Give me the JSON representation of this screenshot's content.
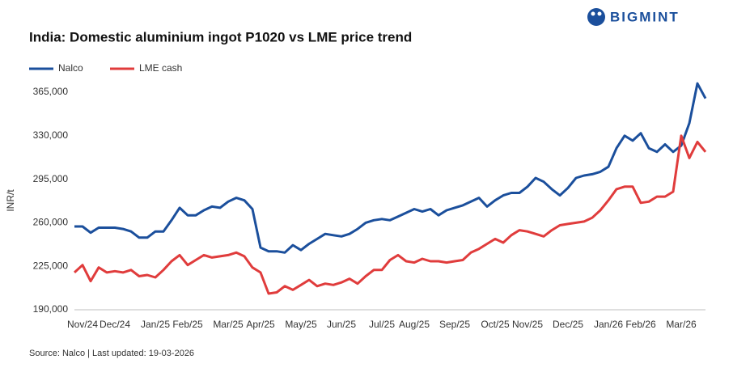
{
  "logo": "BIGMINT",
  "chart_data": {
    "type": "line",
    "title": "India: Domestic aluminium ingot P1020 vs LME price trend",
    "ylabel": "INR/t",
    "source": "Source: Nalco | Last updated: 19-03-2026",
    "legend": "top-left",
    "grid": false,
    "ylim": [
      190000,
      375000
    ],
    "yticks": [
      {
        "value": 190000,
        "label": "190,000"
      },
      {
        "value": 225000,
        "label": "225,000"
      },
      {
        "value": 260000,
        "label": "260,000"
      },
      {
        "value": 295000,
        "label": "295,000"
      },
      {
        "value": 330000,
        "label": "330,000"
      },
      {
        "value": 365000,
        "label": "365,000"
      }
    ],
    "categories": [
      null,
      "Nov/24",
      null,
      null,
      null,
      "Dec/24",
      null,
      null,
      null,
      null,
      "Jan/25",
      null,
      null,
      null,
      "Feb/25",
      null,
      null,
      null,
      null,
      "Mar/25",
      null,
      null,
      null,
      "Apr/25",
      null,
      null,
      null,
      null,
      "May/25",
      null,
      null,
      null,
      null,
      "Jun/25",
      null,
      null,
      null,
      null,
      "Jul/25",
      null,
      null,
      null,
      "Aug/25",
      null,
      null,
      null,
      null,
      "Sep/25",
      null,
      null,
      null,
      null,
      "Oct/25",
      null,
      null,
      null,
      "Nov/25",
      null,
      null,
      null,
      null,
      "Dec/25",
      null,
      null,
      null,
      null,
      "Jan/26",
      null,
      null,
      null,
      "Feb/26",
      null,
      null,
      null,
      null,
      "Mar/26",
      null,
      null,
      null
    ],
    "series": [
      {
        "name": "Nalco",
        "color": "#1b4f9c",
        "values": [
          257000,
          257000,
          252000,
          256000,
          256000,
          256000,
          255000,
          253000,
          248000,
          248000,
          253000,
          253000,
          262000,
          272000,
          266000,
          266000,
          270000,
          273000,
          272000,
          277000,
          280000,
          278000,
          271000,
          240000,
          237000,
          237000,
          236000,
          242000,
          238000,
          243000,
          247000,
          251000,
          250000,
          249000,
          251000,
          255000,
          260000,
          262000,
          263000,
          262000,
          265000,
          268000,
          271000,
          269000,
          271000,
          266000,
          270000,
          272000,
          274000,
          277000,
          280000,
          273000,
          278000,
          282000,
          284000,
          284000,
          289000,
          296000,
          293000,
          287000,
          282000,
          288000,
          296000,
          298000,
          299000,
          301000,
          305000,
          320000,
          330000,
          326000,
          332000,
          320000,
          317000,
          323000,
          317000,
          322000,
          340000,
          372000,
          360000
        ]
      },
      {
        "name": "LME cash",
        "color": "#e03c3c",
        "values": [
          220000,
          226000,
          213000,
          224000,
          220000,
          221000,
          220000,
          222000,
          217000,
          218000,
          216000,
          222000,
          229000,
          234000,
          226000,
          230000,
          234000,
          232000,
          233000,
          234000,
          236000,
          233000,
          224000,
          220000,
          203000,
          204000,
          209000,
          206000,
          210000,
          214000,
          209000,
          211000,
          210000,
          212000,
          215000,
          211000,
          217000,
          222000,
          222000,
          230000,
          234000,
          229000,
          228000,
          231000,
          229000,
          229000,
          228000,
          229000,
          230000,
          236000,
          239000,
          243000,
          247000,
          244000,
          250000,
          254000,
          253000,
          251000,
          249000,
          254000,
          258000,
          259000,
          260000,
          261000,
          264000,
          270000,
          278000,
          287000,
          289000,
          289000,
          276000,
          277000,
          281000,
          281000,
          285000,
          330000,
          312000,
          325000,
          317000
        ]
      }
    ]
  }
}
